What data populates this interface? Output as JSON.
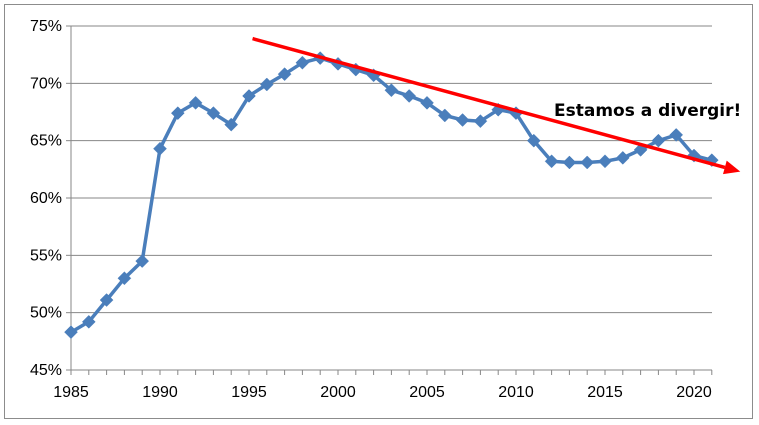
{
  "chart_data": {
    "type": "line",
    "title": "",
    "xlabel": "",
    "ylabel": "",
    "xlim": [
      1985,
      2022
    ],
    "ylim": [
      45,
      75
    ],
    "x_ticks": [
      1985,
      1990,
      1995,
      2000,
      2005,
      2010,
      2015,
      2020
    ],
    "x_tick_labels": [
      "1985",
      "1990",
      "1995",
      "2000",
      "2005",
      "2010",
      "2015",
      "2020"
    ],
    "y_ticks": [
      45,
      50,
      55,
      60,
      65,
      70,
      75
    ],
    "y_tick_labels": [
      "45%",
      "50%",
      "55%",
      "60%",
      "65%",
      "70%",
      "75%"
    ],
    "grid": {
      "horizontal": true,
      "vertical": false
    },
    "legend": "none",
    "series": [
      {
        "color": "#4a7ebb",
        "marker": "diamond",
        "x": [
          1985,
          1986,
          1987,
          1988,
          1989,
          1990,
          1991,
          1992,
          1993,
          1994,
          1995,
          1996,
          1997,
          1998,
          1999,
          2000,
          2001,
          2002,
          2003,
          2004,
          2005,
          2006,
          2007,
          2008,
          2009,
          2010,
          2011,
          2012,
          2013,
          2014,
          2015,
          2016,
          2017,
          2018,
          2019,
          2020,
          2021
        ],
        "values": [
          48.3,
          49.2,
          51.1,
          53.0,
          54.5,
          64.3,
          67.4,
          68.3,
          67.4,
          66.4,
          68.9,
          69.9,
          70.8,
          71.8,
          72.2,
          71.7,
          71.2,
          70.7,
          69.4,
          68.9,
          68.3,
          67.2,
          66.8,
          66.7,
          67.7,
          67.4,
          65.0,
          63.2,
          63.1,
          63.1,
          63.2,
          63.5,
          64.2,
          65.0,
          65.5,
          63.7,
          63.3
        ]
      }
    ],
    "trend_arrow": {
      "color": "#ff0000",
      "from": {
        "x": 1995.2,
        "y": 73.9
      },
      "to": {
        "x": 2022.6,
        "y": 62.3
      }
    },
    "annotations": [
      {
        "text": "Estamos a divergir!"
      }
    ]
  }
}
